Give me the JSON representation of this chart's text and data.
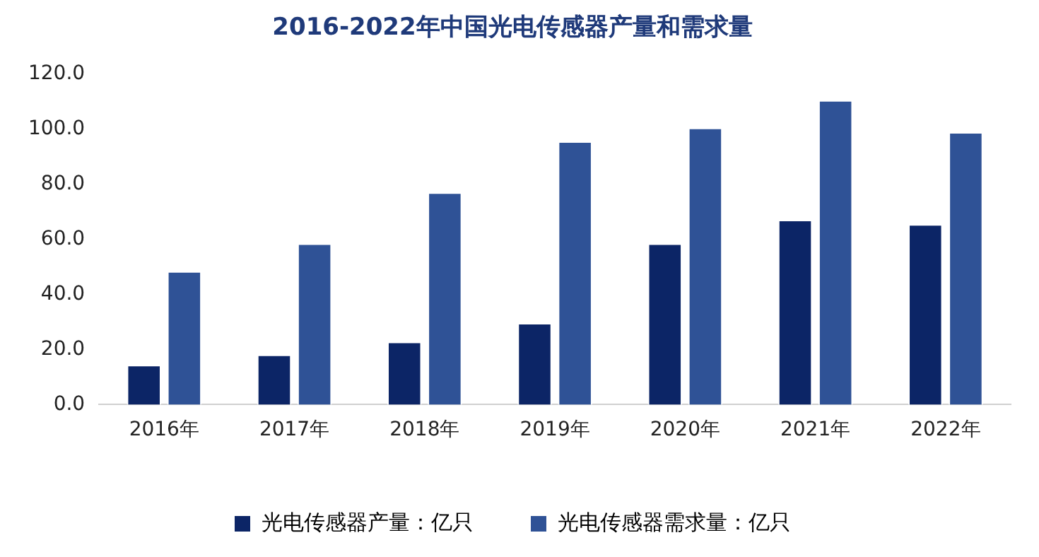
{
  "chart_data": {
    "type": "bar",
    "title": "2016-2022年中国光电传感器产量和需求量",
    "categories": [
      "2016年",
      "2017年",
      "2018年",
      "2019年",
      "2020年",
      "2021年",
      "2022年"
    ],
    "series": [
      {
        "name": "光电传感器产量：亿只",
        "color": "#0c2566",
        "values": [
          14.4,
          18.1,
          22.8,
          29.6,
          58.5,
          67.1,
          65.5
        ]
      },
      {
        "name": "光电传感器需求量：亿只",
        "color": "#2f5296",
        "values": [
          48.4,
          58.5,
          77.0,
          95.6,
          100.5,
          110.5,
          98.9
        ]
      }
    ],
    "ylim": [
      0,
      120
    ],
    "yticks": [
      {
        "value": 0,
        "label": "0.0"
      },
      {
        "value": 20,
        "label": "20.0"
      },
      {
        "value": 40,
        "label": "40.0"
      },
      {
        "value": 60,
        "label": "60.0"
      },
      {
        "value": 80,
        "label": "80.0"
      },
      {
        "value": 100,
        "label": "100.0"
      },
      {
        "value": 120,
        "label": "120.0"
      }
    ],
    "grid": false,
    "legend": "bottom"
  }
}
